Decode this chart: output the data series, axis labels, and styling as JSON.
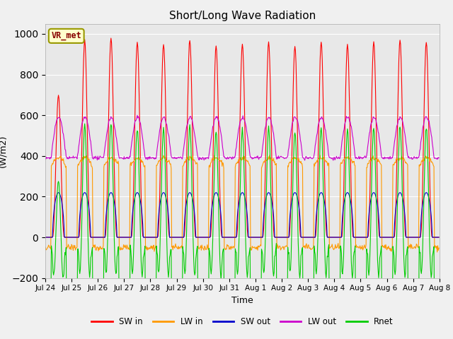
{
  "title": "Short/Long Wave Radiation",
  "xlabel": "Time",
  "ylabel": "(W/m2)",
  "ylim": [
    -200,
    1050
  ],
  "yticks": [
    -200,
    0,
    200,
    400,
    600,
    800,
    1000
  ],
  "bg_color": "#e8e8e8",
  "colors": {
    "SW_in": "#ff0000",
    "LW_in": "#ff9900",
    "SW_out": "#0000cc",
    "LW_out": "#cc00cc",
    "Rnet": "#00cc00"
  },
  "legend_labels": [
    "SW in",
    "LW in",
    "SW out",
    "LW out",
    "Rnet"
  ],
  "station_label": "VR_met",
  "n_days": 15,
  "tick_labels": [
    "Jul 24",
    "Jul 25",
    "Jul 26",
    "Jul 27",
    "Jul 28",
    "Jul 29",
    "Jul 30",
    "Jul 31",
    "Aug 1",
    "Aug 2",
    "Aug 3",
    "Aug 4",
    "Aug 5",
    "Aug 6",
    "Aug 7",
    "Aug 8"
  ]
}
